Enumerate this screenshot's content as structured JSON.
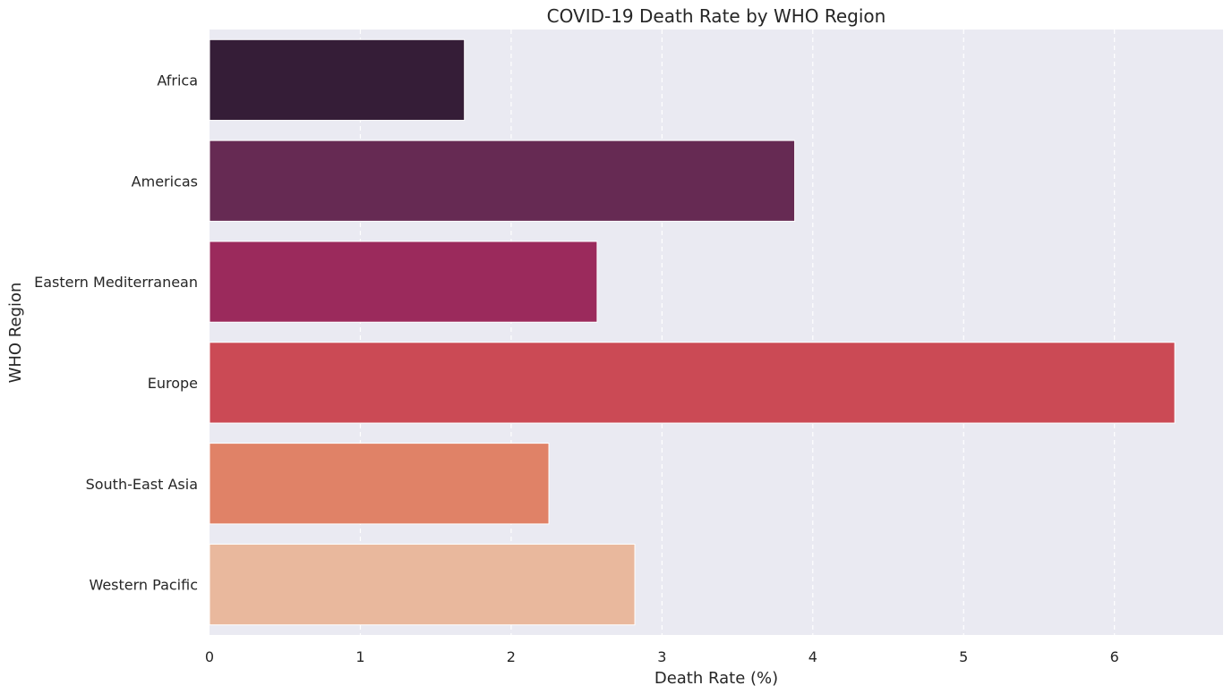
{
  "chart_data": {
    "type": "bar",
    "orientation": "horizontal",
    "title": "COVID-19 Death Rate by WHO Region",
    "xlabel": "Death Rate (%)",
    "ylabel": "WHO Region",
    "categories": [
      "Africa",
      "Americas",
      "Eastern Mediterranean",
      "Europe",
      "South-East Asia",
      "Western Pacific"
    ],
    "values": [
      1.69,
      3.88,
      2.57,
      6.4,
      2.25,
      2.82
    ],
    "colors": [
      "#351d37",
      "#662a53",
      "#9b2a5c",
      "#cb4a55",
      "#e08267",
      "#e9b89d"
    ],
    "xlim": [
      0,
      6.72
    ],
    "xticks": [
      0,
      1,
      2,
      3,
      4,
      5,
      6
    ],
    "grid": "x-dashed",
    "background": "#eaeaf2",
    "legend": "none"
  }
}
